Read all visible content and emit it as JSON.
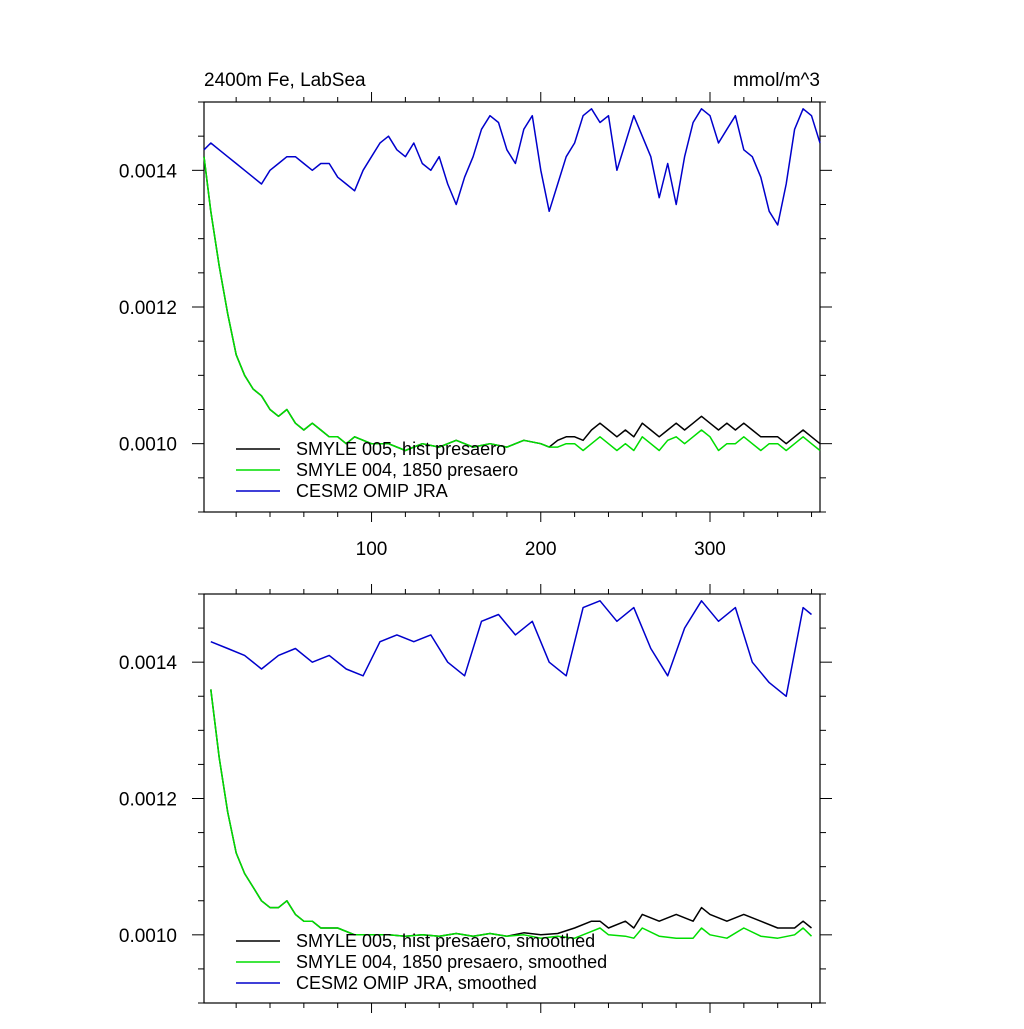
{
  "title_left": "2400m Fe, LabSea",
  "title_right": "mmol/m^3",
  "colors": {
    "hist": "#000000",
    "presaero1850": "#00dd00",
    "omip": "#0000cc"
  },
  "chart_data": [
    {
      "type": "line",
      "panel": "top",
      "title": "2400m Fe, LabSea",
      "units_label": "mmol/m^3",
      "xlim": [
        1,
        365
      ],
      "ylim": [
        0.0009,
        0.0015
      ],
      "x_tick_labels": [
        "100",
        "200",
        "300"
      ],
      "y_tick_labels": [
        "0.0010",
        "0.0012",
        "0.0014"
      ],
      "legend_position": "lower-left",
      "series": [
        {
          "name": "SMYLE 005, hist presaero",
          "color_key": "hist",
          "x": [
            1,
            5,
            10,
            15,
            20,
            25,
            30,
            35,
            40,
            45,
            50,
            55,
            60,
            65,
            70,
            75,
            80,
            85,
            90,
            100,
            110,
            120,
            130,
            140,
            150,
            160,
            170,
            180,
            190,
            200,
            205,
            210,
            215,
            220,
            225,
            230,
            235,
            240,
            245,
            250,
            255,
            260,
            265,
            270,
            275,
            280,
            285,
            290,
            295,
            300,
            305,
            310,
            315,
            320,
            325,
            330,
            335,
            340,
            345,
            350,
            355,
            360,
            365
          ],
          "y": [
            0.00142,
            0.00134,
            0.00126,
            0.00119,
            0.00113,
            0.0011,
            0.00108,
            0.00107,
            0.00105,
            0.00104,
            0.00105,
            0.00103,
            0.00102,
            0.00103,
            0.00102,
            0.00101,
            0.00101,
            0.001,
            0.00101,
            0.001,
            0.001,
            0.00099,
            0.001,
            0.000995,
            0.001005,
            0.000995,
            0.001,
            0.000995,
            0.001005,
            0.001,
            0.000995,
            0.001005,
            0.00101,
            0.00101,
            0.001005,
            0.00102,
            0.00103,
            0.00102,
            0.00101,
            0.00102,
            0.00101,
            0.00103,
            0.00102,
            0.00101,
            0.00102,
            0.00103,
            0.00102,
            0.00103,
            0.00104,
            0.00103,
            0.00102,
            0.00103,
            0.00102,
            0.00103,
            0.00102,
            0.00101,
            0.00101,
            0.00101,
            0.001,
            0.00101,
            0.00102,
            0.00101,
            0.001
          ]
        },
        {
          "name": "SMYLE 004, 1850 presaero",
          "color_key": "presaero1850",
          "x": [
            1,
            5,
            10,
            15,
            20,
            25,
            30,
            35,
            40,
            45,
            50,
            55,
            60,
            65,
            70,
            75,
            80,
            85,
            90,
            100,
            110,
            120,
            130,
            140,
            150,
            160,
            170,
            180,
            190,
            200,
            205,
            210,
            215,
            220,
            225,
            230,
            235,
            240,
            245,
            250,
            255,
            260,
            265,
            270,
            275,
            280,
            285,
            290,
            295,
            300,
            305,
            310,
            315,
            320,
            325,
            330,
            335,
            340,
            345,
            350,
            355,
            360,
            365
          ],
          "y": [
            0.00142,
            0.00134,
            0.00126,
            0.00119,
            0.00113,
            0.0011,
            0.00108,
            0.00107,
            0.00105,
            0.00104,
            0.00105,
            0.00103,
            0.00102,
            0.00103,
            0.00102,
            0.00101,
            0.00101,
            0.001,
            0.00101,
            0.001,
            0.001,
            0.00099,
            0.001,
            0.000995,
            0.001005,
            0.000995,
            0.001,
            0.000995,
            0.001005,
            0.001,
            0.000995,
            0.000995,
            0.001,
            0.001,
            0.00099,
            0.001,
            0.00101,
            0.001,
            0.00099,
            0.001,
            0.00099,
            0.00101,
            0.001,
            0.00099,
            0.001005,
            0.00101,
            0.001,
            0.00101,
            0.00102,
            0.00101,
            0.00099,
            0.001,
            0.001,
            0.00101,
            0.001,
            0.00099,
            0.001,
            0.001,
            0.00099,
            0.001,
            0.00101,
            0.001,
            0.00099
          ]
        },
        {
          "name": "CESM2 OMIP JRA",
          "color_key": "omip",
          "x": [
            1,
            5,
            10,
            15,
            20,
            25,
            30,
            35,
            40,
            45,
            50,
            55,
            60,
            65,
            70,
            75,
            80,
            85,
            90,
            95,
            100,
            105,
            110,
            115,
            120,
            125,
            130,
            135,
            140,
            145,
            150,
            155,
            160,
            165,
            170,
            175,
            180,
            185,
            190,
            195,
            200,
            205,
            210,
            215,
            220,
            225,
            230,
            235,
            240,
            245,
            250,
            255,
            260,
            265,
            270,
            275,
            280,
            285,
            290,
            295,
            300,
            305,
            310,
            315,
            320,
            325,
            330,
            335,
            340,
            345,
            350,
            355,
            360,
            365
          ],
          "y": [
            0.00143,
            0.00144,
            0.00143,
            0.00142,
            0.00141,
            0.0014,
            0.00139,
            0.00138,
            0.0014,
            0.00141,
            0.00142,
            0.00142,
            0.00141,
            0.0014,
            0.00141,
            0.00141,
            0.00139,
            0.00138,
            0.00137,
            0.0014,
            0.00142,
            0.00144,
            0.00145,
            0.00143,
            0.00142,
            0.00144,
            0.00141,
            0.0014,
            0.00142,
            0.00138,
            0.00135,
            0.00139,
            0.00142,
            0.00146,
            0.00148,
            0.00147,
            0.00143,
            0.00141,
            0.00146,
            0.00148,
            0.0014,
            0.00134,
            0.00138,
            0.00142,
            0.00144,
            0.00148,
            0.00149,
            0.00147,
            0.00148,
            0.0014,
            0.00144,
            0.00148,
            0.00145,
            0.00142,
            0.00136,
            0.00141,
            0.00135,
            0.00142,
            0.00147,
            0.00149,
            0.00148,
            0.00144,
            0.00146,
            0.00148,
            0.00143,
            0.00142,
            0.00139,
            0.00134,
            0.00132,
            0.00138,
            0.00146,
            0.00149,
            0.00148,
            0.00144
          ]
        }
      ]
    },
    {
      "type": "line",
      "panel": "bottom",
      "xlim": [
        1,
        365
      ],
      "ylim": [
        0.0009,
        0.0015
      ],
      "x_tick_labels": [],
      "y_tick_labels": [
        "0.0010",
        "0.0012",
        "0.0014"
      ],
      "legend_position": "lower-left",
      "series": [
        {
          "name": "SMYLE 005, hist presaero, smoothed",
          "color_key": "hist",
          "x": [
            5,
            10,
            15,
            20,
            25,
            30,
            35,
            40,
            45,
            50,
            55,
            60,
            65,
            70,
            80,
            90,
            100,
            110,
            120,
            130,
            140,
            150,
            160,
            170,
            180,
            190,
            200,
            210,
            220,
            230,
            235,
            240,
            250,
            255,
            260,
            270,
            280,
            290,
            295,
            300,
            310,
            320,
            330,
            340,
            350,
            355,
            360
          ],
          "y": [
            0.00136,
            0.00126,
            0.00118,
            0.00112,
            0.00109,
            0.00107,
            0.00105,
            0.00104,
            0.00104,
            0.00105,
            0.00103,
            0.00102,
            0.00102,
            0.00101,
            0.00101,
            0.001,
            0.001,
            0.001,
            0.000998,
            0.001,
            0.000998,
            0.001002,
            0.000998,
            0.001002,
            0.000998,
            0.001003,
            0.001,
            0.001002,
            0.00101,
            0.00102,
            0.00102,
            0.00101,
            0.00102,
            0.00101,
            0.00103,
            0.00102,
            0.00103,
            0.00102,
            0.00104,
            0.00103,
            0.00102,
            0.00103,
            0.00102,
            0.00101,
            0.00101,
            0.00102,
            0.00101
          ]
        },
        {
          "name": "SMYLE 004, 1850 presaero, smoothed",
          "color_key": "presaero1850",
          "x": [
            5,
            10,
            15,
            20,
            25,
            30,
            35,
            40,
            45,
            50,
            55,
            60,
            65,
            70,
            80,
            90,
            100,
            110,
            120,
            130,
            140,
            150,
            160,
            170,
            180,
            190,
            200,
            210,
            220,
            230,
            235,
            240,
            250,
            255,
            260,
            270,
            280,
            290,
            295,
            300,
            310,
            320,
            330,
            340,
            350,
            355,
            360
          ],
          "y": [
            0.00136,
            0.00126,
            0.00118,
            0.00112,
            0.00109,
            0.00107,
            0.00105,
            0.00104,
            0.00104,
            0.00105,
            0.00103,
            0.00102,
            0.00102,
            0.00101,
            0.00101,
            0.001,
            0.001,
            0.001,
            0.000998,
            0.001,
            0.000998,
            0.001002,
            0.000998,
            0.001002,
            0.000998,
            0.001,
            0.000995,
            0.000998,
            0.000995,
            0.001005,
            0.00101,
            0.001,
            0.000998,
            0.000995,
            0.00101,
            0.000998,
            0.000995,
            0.000995,
            0.00101,
            0.001,
            0.000995,
            0.00101,
            0.000998,
            0.000995,
            0.001,
            0.00101,
            0.000998
          ]
        },
        {
          "name": "CESM2 OMIP JRA, smoothed",
          "color_key": "omip",
          "x": [
            5,
            15,
            25,
            35,
            45,
            55,
            65,
            75,
            85,
            95,
            105,
            115,
            125,
            135,
            145,
            155,
            165,
            175,
            185,
            195,
            205,
            215,
            225,
            235,
            245,
            255,
            265,
            275,
            285,
            295,
            305,
            315,
            325,
            335,
            345,
            355,
            360
          ],
          "y": [
            0.00143,
            0.00142,
            0.00141,
            0.00139,
            0.00141,
            0.00142,
            0.0014,
            0.00141,
            0.00139,
            0.00138,
            0.00143,
            0.00144,
            0.00143,
            0.00144,
            0.0014,
            0.00138,
            0.00146,
            0.00147,
            0.00144,
            0.00146,
            0.0014,
            0.00138,
            0.00148,
            0.00149,
            0.00146,
            0.00148,
            0.00142,
            0.00138,
            0.00145,
            0.00149,
            0.00146,
            0.00148,
            0.0014,
            0.00137,
            0.00135,
            0.00148,
            0.00147
          ]
        }
      ]
    }
  ]
}
